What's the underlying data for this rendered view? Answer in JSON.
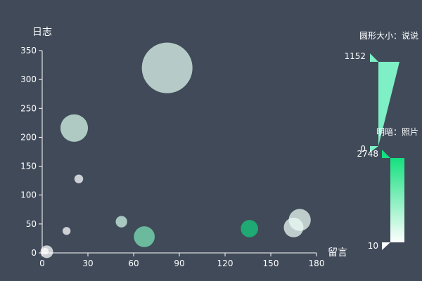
{
  "chart_data": {
    "type": "scatter",
    "xlabel": "留言",
    "ylabel": "日志",
    "xlim": [
      0,
      180
    ],
    "ylim": [
      0,
      350
    ],
    "x_ticks": [
      0,
      30,
      60,
      90,
      120,
      150,
      180
    ],
    "y_ticks": [
      0,
      50,
      100,
      150,
      200,
      250,
      300,
      350
    ],
    "points": [
      {
        "x": 82,
        "y": 320,
        "size": 1152,
        "shade": 400
      },
      {
        "x": 21,
        "y": 216,
        "size": 560,
        "shade": 520
      },
      {
        "x": 24,
        "y": 128,
        "size": 80,
        "shade": 60
      },
      {
        "x": 16,
        "y": 38,
        "size": 60,
        "shade": 40
      },
      {
        "x": 52,
        "y": 54,
        "size": 150,
        "shade": 600
      },
      {
        "x": 67,
        "y": 28,
        "size": 390,
        "shade": 1560
      },
      {
        "x": 136,
        "y": 42,
        "size": 300,
        "shade": 2748
      },
      {
        "x": 165,
        "y": 44,
        "size": 360,
        "shade": 250
      },
      {
        "x": 169,
        "y": 57,
        "size": 420,
        "shade": 280
      },
      {
        "x": 3,
        "y": 2,
        "size": 180,
        "shade": 40
      },
      {
        "x": 2,
        "y": 3,
        "size": 30,
        "shade": 10
      }
    ],
    "visual_maps": [
      {
        "title": "圆形大小：说说",
        "min": 0,
        "max": 1152,
        "min_label": "0",
        "max_label": "1152"
      },
      {
        "title": "明暗：照片",
        "min": 10,
        "max": 2748,
        "min_label": "10",
        "max_label": "2748"
      }
    ],
    "colors": {
      "background": "#404a59",
      "axis": "#ffffff",
      "color_light": "#ffffff",
      "color_dark": "#14c97c",
      "size_legend_color": "#7fefc5"
    }
  }
}
